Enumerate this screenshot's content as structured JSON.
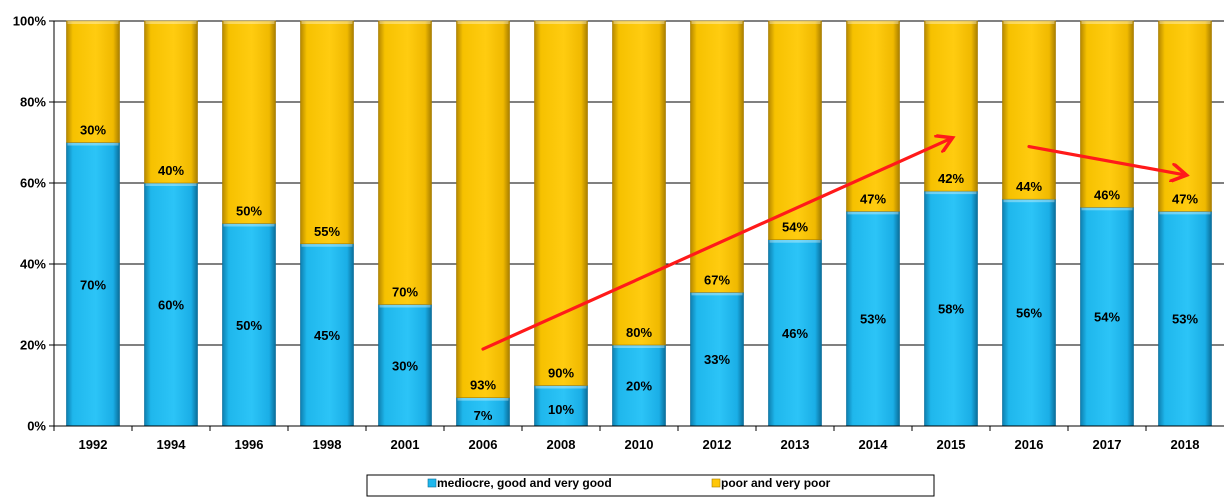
{
  "chart_data": {
    "type": "bar",
    "stacked": true,
    "percent": true,
    "categories": [
      "1992",
      "1994",
      "1996",
      "1998",
      "2001",
      "2006",
      "2008",
      "2010",
      "2012",
      "2013",
      "2014",
      "2015",
      "2016",
      "2017",
      "2018"
    ],
    "series": [
      {
        "name": "mediocre, good and very good",
        "color": "#1EB8EE",
        "values": [
          70,
          60,
          50,
          45,
          30,
          7,
          10,
          20,
          33,
          46,
          53,
          58,
          56,
          54,
          53
        ],
        "labels": [
          "70%",
          "60%",
          "50%",
          "45%",
          "30%",
          "7%",
          "10%",
          "20%",
          "33%",
          "46%",
          "53%",
          "58%",
          "56%",
          "54%",
          "53%"
        ]
      },
      {
        "name": "poor and very poor",
        "color": "#FFC709",
        "values": [
          30,
          40,
          50,
          55,
          70,
          93,
          90,
          80,
          67,
          54,
          47,
          42,
          44,
          46,
          47
        ],
        "labels": [
          "30%",
          "40%",
          "50%",
          "55%",
          "70%",
          "93%",
          "90%",
          "80%",
          "67%",
          "54%",
          "47%",
          "42%",
          "44%",
          "46%",
          "47%"
        ]
      }
    ],
    "ylim": [
      0,
      100
    ],
    "yticks": [
      "0%",
      "20%",
      "40%",
      "60%",
      "80%",
      "100%"
    ],
    "grid": true,
    "legend_position": "bottom",
    "annotations": [
      {
        "type": "arrow",
        "color": "#FF1A1A",
        "from": {
          "x": "2006",
          "y": 19
        },
        "to": {
          "x": "2015",
          "y": 71
        }
      },
      {
        "type": "arrow",
        "color": "#FF1A1A",
        "from": {
          "x": "2016",
          "y": 69
        },
        "to": {
          "x": "2018",
          "y": 62
        }
      }
    ]
  }
}
